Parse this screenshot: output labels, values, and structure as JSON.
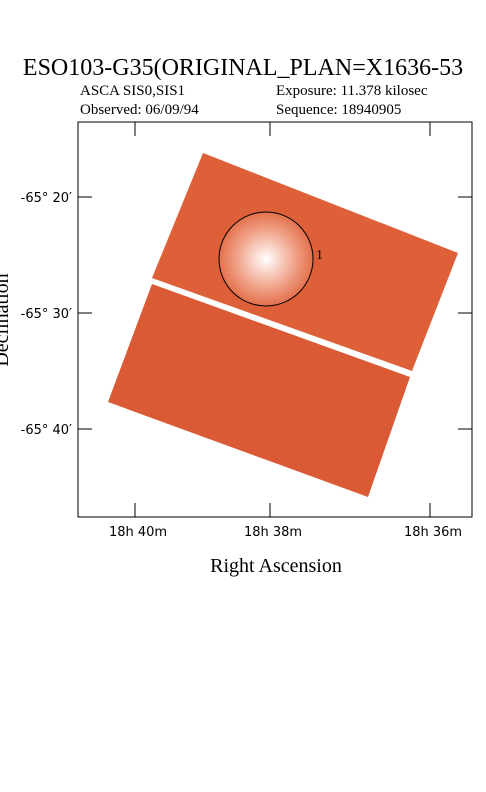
{
  "title": "ESO103-G35(ORIGINAL_PLAN=X1636-53",
  "info": {
    "instrument": "ASCA SIS0,SIS1",
    "exposure": "Exposure: 11.378 kilosec",
    "observed": "Observed: 06/09/94",
    "sequence": "Sequence: 18940905"
  },
  "axes": {
    "x_label": "Right Ascension",
    "y_label": "Declination",
    "x_ticks": [
      "18h 40m",
      "18h 38m",
      "18h 36m"
    ],
    "y_ticks": [
      "-65° 20′",
      "-65° 30′",
      "-65° 40′"
    ]
  },
  "region_label": "1"
}
